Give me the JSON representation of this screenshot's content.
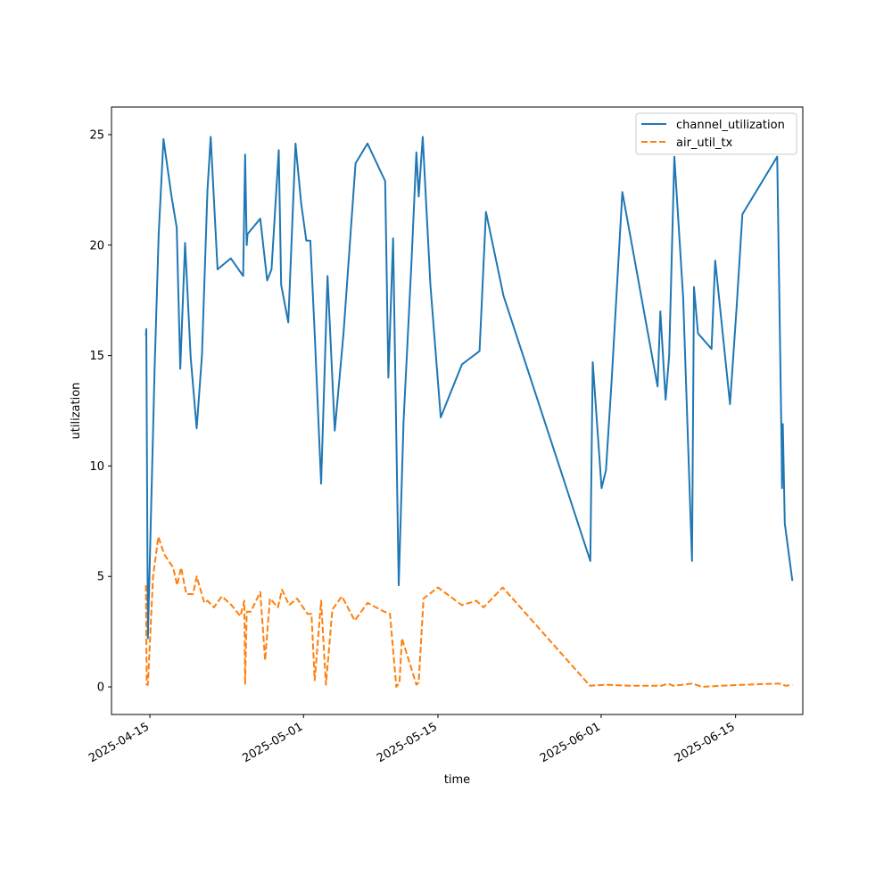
{
  "chart_data": {
    "type": "line",
    "xlabel": "time",
    "ylabel": "utilization",
    "xlim": [
      "2025-04-11",
      "2025-06-22"
    ],
    "ylim": [
      -1.25,
      26.25
    ],
    "x_ticks": [
      "2025-04-15",
      "2025-05-01",
      "2025-05-15",
      "2025-06-01",
      "2025-06-15"
    ],
    "y_ticks": [
      0,
      5,
      10,
      15,
      20,
      25
    ],
    "legend": {
      "placement": "top-right"
    },
    "grid": false,
    "series": [
      {
        "name": "channel_utilization",
        "color": "#1f77b4",
        "style": "solid",
        "points": [
          [
            "2025-04-14 14:00",
            15.9
          ],
          [
            "2025-04-14 15:00",
            16.2
          ],
          [
            "2025-04-14 19:00",
            2.2
          ],
          [
            "2025-04-15 12:00",
            14.5
          ],
          [
            "2025-04-15 22:00",
            20.5
          ],
          [
            "2025-04-16 10:00",
            24.8
          ],
          [
            "2025-04-17 06:00",
            22.2
          ],
          [
            "2025-04-17 19:00",
            20.8
          ],
          [
            "2025-04-18 04:00",
            14.4
          ],
          [
            "2025-04-18 16:00",
            20.1
          ],
          [
            "2025-04-19 06:00",
            14.9
          ],
          [
            "2025-04-19 21:00",
            11.7
          ],
          [
            "2025-04-20 10:00",
            15.0
          ],
          [
            "2025-04-21 00:00",
            22.5
          ],
          [
            "2025-04-21 08:00",
            24.9
          ],
          [
            "2025-04-22 01:00",
            18.9
          ],
          [
            "2025-04-23 10:00",
            19.4
          ],
          [
            "2025-04-24 17:00",
            18.6
          ],
          [
            "2025-04-24 22:00",
            24.1
          ],
          [
            "2025-04-25 02:00",
            20.0
          ],
          [
            "2025-04-25 04:00",
            20.5
          ],
          [
            "2025-04-26 12:00",
            21.2
          ],
          [
            "2025-04-27 05:00",
            18.4
          ],
          [
            "2025-04-27 16:00",
            18.9
          ],
          [
            "2025-04-28 10:00",
            24.3
          ],
          [
            "2025-04-28 16:00",
            18.2
          ],
          [
            "2025-04-29 10:00",
            16.5
          ],
          [
            "2025-04-30 04:00",
            24.6
          ],
          [
            "2025-04-30 18:00",
            21.9
          ],
          [
            "2025-05-01 07:00",
            20.2
          ],
          [
            "2025-05-01 17:00",
            20.2
          ],
          [
            "2025-05-02 04:00",
            16.0
          ],
          [
            "2025-05-02 20:00",
            9.2
          ],
          [
            "2025-05-03 12:00",
            18.6
          ],
          [
            "2025-05-04 06:00",
            11.6
          ],
          [
            "2025-05-05 04:00",
            16.0
          ],
          [
            "2025-05-06 10:00",
            23.7
          ],
          [
            "2025-05-07 16:00",
            24.6
          ],
          [
            "2025-05-09 12:00",
            22.9
          ],
          [
            "2025-05-09 20:00",
            14.0
          ],
          [
            "2025-05-10 08:00",
            20.3
          ],
          [
            "2025-05-10 22:00",
            4.6
          ],
          [
            "2025-05-11 10:00",
            12.0
          ],
          [
            "2025-05-12 06:00",
            19.3
          ],
          [
            "2025-05-12 18:00",
            24.2
          ],
          [
            "2025-05-13 00:00",
            22.2
          ],
          [
            "2025-05-13 10:00",
            24.9
          ],
          [
            "2025-05-14 05:00",
            18.2
          ],
          [
            "2025-05-15 07:00",
            12.2
          ],
          [
            "2025-05-17 12:00",
            14.6
          ],
          [
            "2025-05-19 08:00",
            15.2
          ],
          [
            "2025-05-20 00:00",
            21.5
          ],
          [
            "2025-05-21 20:00",
            17.7
          ],
          [
            "2025-05-30 21:00",
            5.7
          ],
          [
            "2025-05-31 03:00",
            14.7
          ],
          [
            "2025-06-01 01:00",
            9.0
          ],
          [
            "2025-06-01 12:00",
            9.8
          ],
          [
            "2025-06-02 02:00",
            13.8
          ],
          [
            "2025-06-03 05:00",
            22.4
          ],
          [
            "2025-06-06 21:00",
            13.6
          ],
          [
            "2025-06-07 04:00",
            17.0
          ],
          [
            "2025-06-07 17:00",
            13.0
          ],
          [
            "2025-06-08 02:00",
            15.0
          ],
          [
            "2025-06-08 15:00",
            24.0
          ],
          [
            "2025-06-09 13:00",
            17.6
          ],
          [
            "2025-06-10 11:00",
            5.7
          ],
          [
            "2025-06-10 16:00",
            18.1
          ],
          [
            "2025-06-11 02:00",
            16.0
          ],
          [
            "2025-06-12 12:00",
            15.3
          ],
          [
            "2025-06-12 21:00",
            19.3
          ],
          [
            "2025-06-14 10:00",
            12.8
          ],
          [
            "2025-06-15 02:00",
            17.0
          ],
          [
            "2025-06-15 17:00",
            21.4
          ],
          [
            "2025-06-19 08:00",
            24.0
          ],
          [
            "2025-06-19 19:00",
            11.0
          ],
          [
            "2025-06-19 20:00",
            9.0
          ],
          [
            "2025-06-19 22:00",
            11.9
          ],
          [
            "2025-06-20 03:00",
            7.4
          ],
          [
            "2025-06-20 22:00",
            4.8
          ]
        ]
      },
      {
        "name": "air_util_tx",
        "color": "#ff7f0e",
        "style": "dashed",
        "points": [
          [
            "2025-04-14 14:00",
            4.6
          ],
          [
            "2025-04-14 16:00",
            0.1
          ],
          [
            "2025-04-14 19:00",
            0.1
          ],
          [
            "2025-04-15 08:00",
            5.0
          ],
          [
            "2025-04-15 21:00",
            6.8
          ],
          [
            "2025-04-16 12:00",
            6.0
          ],
          [
            "2025-04-17 10:00",
            5.4
          ],
          [
            "2025-04-17 20:00",
            4.6
          ],
          [
            "2025-04-18 06:00",
            5.4
          ],
          [
            "2025-04-18 19:00",
            4.2
          ],
          [
            "2025-04-19 12:00",
            4.2
          ],
          [
            "2025-04-19 21:00",
            5.0
          ],
          [
            "2025-04-20 16:00",
            3.8
          ],
          [
            "2025-04-21 00:00",
            3.9
          ],
          [
            "2025-04-21 16:00",
            3.6
          ],
          [
            "2025-04-22 12:00",
            4.1
          ],
          [
            "2025-04-23 12:00",
            3.7
          ],
          [
            "2025-04-24 10:00",
            3.2
          ],
          [
            "2025-04-24 20:00",
            3.9
          ],
          [
            "2025-04-24 22:00",
            0.1
          ],
          [
            "2025-04-25 02:00",
            3.4
          ],
          [
            "2025-04-25 12:00",
            3.4
          ],
          [
            "2025-04-26 12:00",
            4.3
          ],
          [
            "2025-04-27 00:00",
            1.2
          ],
          [
            "2025-04-27 12:00",
            4.0
          ],
          [
            "2025-04-28 08:00",
            3.6
          ],
          [
            "2025-04-28 18:00",
            4.4
          ],
          [
            "2025-04-29 12:00",
            3.7
          ],
          [
            "2025-04-30 08:00",
            4.0
          ],
          [
            "2025-05-01 10:00",
            3.3
          ],
          [
            "2025-05-01 20:00",
            3.3
          ],
          [
            "2025-05-02 04:00",
            0.3
          ],
          [
            "2025-05-02 20:00",
            3.9
          ],
          [
            "2025-05-03 08:00",
            0.1
          ],
          [
            "2025-05-04 00:00",
            3.5
          ],
          [
            "2025-05-05 00:00",
            4.1
          ],
          [
            "2025-05-06 08:00",
            3.0
          ],
          [
            "2025-05-07 16:00",
            3.8
          ],
          [
            "2025-05-09 10:00",
            3.4
          ],
          [
            "2025-05-10 00:00",
            3.3
          ],
          [
            "2025-05-10 16:00",
            0.0
          ],
          [
            "2025-05-11 00:00",
            0.2
          ],
          [
            "2025-05-11 06:00",
            2.2
          ],
          [
            "2025-05-12 18:00",
            0.1
          ],
          [
            "2025-05-13 00:00",
            0.2
          ],
          [
            "2025-05-13 12:00",
            4.0
          ],
          [
            "2025-05-15 00:00",
            4.5
          ],
          [
            "2025-05-17 12:00",
            3.7
          ],
          [
            "2025-05-19 00:00",
            3.9
          ],
          [
            "2025-05-19 18:00",
            3.6
          ],
          [
            "2025-05-21 18:00",
            4.5
          ],
          [
            "2025-05-30 20:00",
            0.05
          ],
          [
            "2025-06-01 12:00",
            0.1
          ],
          [
            "2025-06-04 00:00",
            0.05
          ],
          [
            "2025-06-07 06:00",
            0.05
          ],
          [
            "2025-06-08 00:00",
            0.15
          ],
          [
            "2025-06-08 12:00",
            0.05
          ],
          [
            "2025-06-09 12:00",
            0.1
          ],
          [
            "2025-06-10 12:00",
            0.15
          ],
          [
            "2025-06-11 12:00",
            0.0
          ],
          [
            "2025-06-13 12:00",
            0.05
          ],
          [
            "2025-06-16 00:00",
            0.1
          ],
          [
            "2025-06-19 12:00",
            0.15
          ],
          [
            "2025-06-20 06:00",
            0.05
          ],
          [
            "2025-06-20 22:00",
            0.1
          ]
        ]
      }
    ]
  }
}
